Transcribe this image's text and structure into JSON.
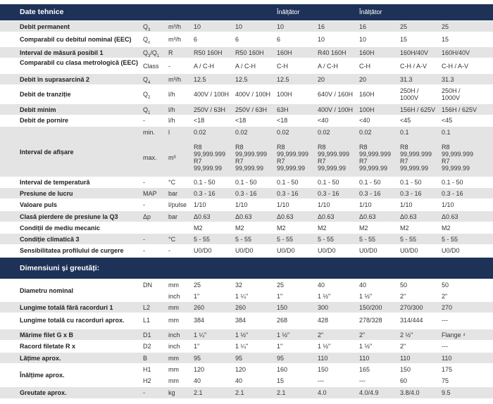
{
  "tech": {
    "title": "Date tehnice",
    "header_cols": [
      "Înălțător",
      "Înălțător"
    ]
  },
  "dims": {
    "title": "Dimensiuni și greutăți:"
  },
  "rows": [
    {
      "label": "Debit permanent",
      "sym": "Q3",
      "unit": "m³/h",
      "vals": [
        "10",
        "10",
        "10",
        "16",
        "16",
        "25",
        "25"
      ]
    },
    {
      "label": "Comparabil cu debitul nominal (EEC)",
      "sym": "Qn",
      "unit": "m³/h",
      "vals": [
        "6",
        "6",
        "6",
        "10",
        "10",
        "15",
        "15"
      ]
    },
    {
      "label": "Interval de măsură posibil 1",
      "sym": "Q3/Q1",
      "unit": "R",
      "vals": [
        "R50 160H",
        "R50 160H",
        "160H",
        "R40 160H",
        "160H",
        "160H/40V",
        "160H/40V"
      ]
    },
    {
      "label": "Comparabil cu clasa metrologică (EEC)",
      "sym": "Class",
      "unit": "-",
      "vals": [
        "A / C-H",
        "A / C-H",
        "C-H",
        "A / C-H",
        "C-H",
        "C-H / A-V",
        "C-H / A-V"
      ]
    },
    {
      "label": "Debit în suprasarcină 2",
      "sym": "Q4",
      "unit": "m³/h",
      "vals": [
        "12.5",
        "12.5",
        "12.5",
        "20",
        "20",
        "31.3",
        "31.3"
      ]
    },
    {
      "label": "Debit de tranziție",
      "sym": "Q2",
      "unit": "l/h",
      "vals": [
        "400V / 100H",
        "400V / 100H",
        "100H",
        "640V / 160H",
        "160H",
        "250H / 1000V",
        "250H / 1000V"
      ]
    },
    {
      "label": "Debit minim",
      "sym": "Q1",
      "unit": "l/h",
      "vals": [
        "250V / 63H",
        "250V / 63H",
        "63H",
        "400V / 100H",
        "100H",
        "156H / 625V",
        "156H / 625V"
      ]
    },
    {
      "label": "Debit de pornire",
      "sym": "-",
      "unit": "l/h",
      "vals": [
        "<18",
        "<18",
        "<18",
        "<40",
        "<40",
        "<45",
        "<45"
      ]
    },
    {
      "label": "Interval de afișare",
      "sub": [
        {
          "sym": "min.",
          "unit": "l",
          "vals": [
            "0.02",
            "0.02",
            "0.02",
            "0.02",
            "0.02",
            "0.1",
            "0.1"
          ]
        },
        {
          "sym": "max.",
          "unit": "m³",
          "vals": [
            "R8 99,999.999 R7 99,999.99",
            "R8 99,999.999 R7 99,999.99",
            "R8 99,999.999 R7 99,999.99",
            "R8 99,999.999 R7 99,999.99",
            "R8 99,999.999 R7 99,999.99",
            "R8 99,999.999 R7 99,999.99",
            "R8 99,999.999 R7 99,999.99"
          ]
        }
      ]
    },
    {
      "label": "Interval de temperatură",
      "sym": "-",
      "unit": "°C",
      "vals": [
        "0.1 - 50",
        "0.1 - 50",
        "0.1 - 50",
        "0.1 - 50",
        "0.1 - 50",
        "0.1 - 50",
        "0.1 - 50"
      ]
    },
    {
      "label": "Presiune de lucru",
      "sym": "MAP",
      "unit": "bar",
      "vals": [
        "0.3 - 16",
        "0.3 - 16",
        "0.3 - 16",
        "0.3 - 16",
        "0.3 - 16",
        "0.3 - 16",
        "0.3 - 16"
      ]
    },
    {
      "label": "Valoare puls",
      "sym": "-",
      "unit": "l/pulse",
      "vals": [
        "1/10",
        "1/10",
        "1/10",
        "1/10",
        "1/10",
        "1/10",
        "1/10"
      ]
    },
    {
      "label": "Clasă pierdere de presiune la Q3",
      "sym": "Δp",
      "unit": "bar",
      "vals": [
        "Δ0.63",
        "Δ0.63",
        "Δ0.63",
        "Δ0.63",
        "Δ0.63",
        "Δ0.63",
        "Δ0.63"
      ]
    },
    {
      "label": "Condiții de mediu mecanic",
      "sym": "",
      "unit": "",
      "vals": [
        "M2",
        "M2",
        "M2",
        "M2",
        "M2",
        "M2",
        "M2"
      ]
    },
    {
      "label": "Condiție climatică 3",
      "sym": "-",
      "unit": "°C",
      "vals": [
        "5 - 55",
        "5 - 55",
        "5 - 55",
        "5 - 55",
        "5 - 55",
        "5 - 55",
        "5 - 55"
      ]
    },
    {
      "label": "Sensibilitatea profilului de curgere",
      "sym": "-",
      "unit": "-",
      "vals": [
        "U0/D0",
        "U0/D0",
        "U0/D0",
        "U0/D0",
        "U0/D0",
        "U0/D0",
        "U0/D0"
      ]
    }
  ],
  "dim_rows": [
    {
      "label": "Diametru nominal",
      "sub": [
        {
          "sym": "DN",
          "unit": "mm",
          "vals": [
            "25",
            "32",
            "25",
            "40",
            "40",
            "50",
            "50"
          ]
        },
        {
          "sym": "",
          "unit": "inch",
          "vals": [
            "1\"",
            "1 ¼\"",
            "1\"",
            "1 ½\"",
            "1 ½\"",
            "2\"",
            "2\""
          ]
        }
      ]
    },
    {
      "label": "Lungime totală fără racorduri 1",
      "sym": "L2",
      "unit": "mm",
      "vals": [
        "260",
        "260",
        "150",
        "300",
        "150/200",
        "270/300",
        "270"
      ]
    },
    {
      "label": "Lungime totală cu racorduri aprox.",
      "sym": "L1",
      "unit": "mm",
      "vals": [
        "384",
        "384",
        "268",
        "428",
        "278/328",
        "314/444",
        "---"
      ]
    },
    {
      "label": "Mărime filet G x B",
      "sym": "D1",
      "unit": "inch",
      "vals": [
        "1 ¼\"",
        "1 ½\"",
        "1 ½\"",
        "2\"",
        "2\"",
        "2 ½\"",
        "Flange ⁴"
      ]
    },
    {
      "label": "Racord filetate R x",
      "sym": "D2",
      "unit": "inch",
      "vals": [
        "1\"",
        "1 ¼\"",
        "1\"",
        "1 ½\"",
        "1 ½\"",
        "2\"",
        "---"
      ]
    },
    {
      "label": "Lățime aprox.",
      "sym": "B",
      "unit": "mm",
      "vals": [
        "95",
        "95",
        "95",
        "110",
        "110",
        "110",
        "110"
      ]
    },
    {
      "label": "Înălțime aprox.",
      "sub": [
        {
          "sym": "H1",
          "unit": "mm",
          "vals": [
            "120",
            "120",
            "160",
            "150",
            "165",
            "150",
            "175"
          ]
        },
        {
          "sym": "H2",
          "unit": "mm",
          "vals": [
            "40",
            "40",
            "15",
            "---",
            "---",
            "60",
            "75"
          ]
        }
      ]
    },
    {
      "label": "Greutate aprox.",
      "sym": "-",
      "unit": "kg",
      "vals": [
        "2.1",
        "2.1",
        "2.1",
        "4.0",
        "4.0/4.9",
        "3.8/4.0",
        "9.5"
      ]
    }
  ]
}
